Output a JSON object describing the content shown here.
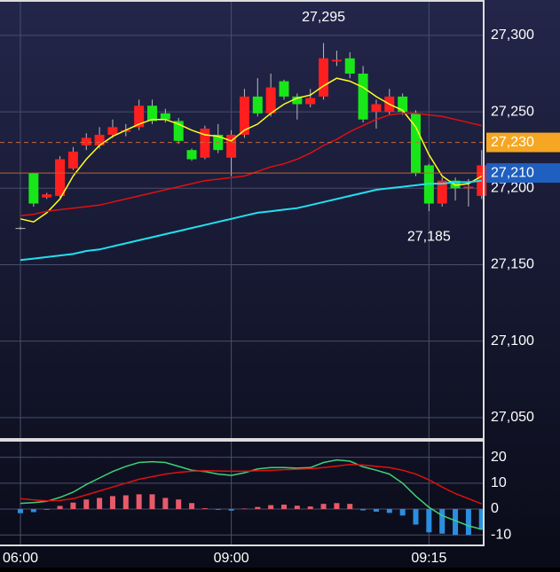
{
  "chart_data": [
    {
      "type": "candlestick",
      "categories": [
        "06:00",
        null,
        null,
        null,
        null,
        null,
        null,
        null,
        null,
        null,
        null,
        null,
        null,
        null,
        null,
        null,
        "09:00",
        null,
        null,
        null,
        null,
        null,
        null,
        null,
        null,
        null,
        null,
        null,
        null,
        null,
        null,
        "09:15",
        null,
        null,
        null,
        null
      ],
      "open": [
        27174,
        27210,
        27194,
        27195,
        27213,
        27228,
        27228,
        27235,
        27237,
        27240,
        27254,
        27249,
        27244,
        27225,
        27220,
        27235,
        27220,
        27235,
        27260,
        27249,
        27270,
        27260,
        27255,
        27260,
        27283,
        27285,
        27275,
        27250,
        27250,
        27260,
        27249,
        27215,
        27190,
        27205,
        27200,
        27195
      ],
      "high": [
        27175,
        27210,
        27197,
        27221,
        27227,
        27236,
        27240,
        27245,
        27242,
        27258,
        27258,
        27252,
        27246,
        27226,
        27241,
        27242,
        27238,
        27265,
        27272,
        27275,
        27271,
        27262,
        27265,
        27295,
        27290,
        27289,
        27280,
        27258,
        27265,
        27262,
        27251,
        27216,
        27207,
        27207,
        27206,
        27225
      ],
      "low": [
        27173,
        27188,
        27193,
        27194,
        27212,
        27225,
        27226,
        27233,
        27234,
        27238,
        27242,
        27243,
        27229,
        27218,
        27219,
        27223,
        27208,
        27233,
        27247,
        27247,
        27258,
        27245,
        27253,
        27258,
        27280,
        27272,
        27243,
        27239,
        27248,
        27248,
        27208,
        27185,
        27188,
        27192,
        27188,
        27193
      ],
      "close": [
        27174,
        27190,
        27196,
        27219,
        27224,
        27233,
        27235,
        27240,
        27238,
        27254,
        27244,
        27245,
        27231,
        27219,
        27239,
        27225,
        27235,
        27260,
        27249,
        27266,
        27260,
        27255,
        27259,
        27285,
        27284,
        27275,
        27245,
        27255,
        27260,
        27250,
        27210,
        27190,
        27205,
        27200,
        27201,
        27215
      ],
      "up_color": "#ff1f1f",
      "down_color": "#19e619",
      "lines": [
        {
          "color": "#ffff22",
          "values": [
            27180,
            27178,
            27184,
            27193,
            27208,
            27219,
            27228,
            27234,
            27238,
            27242,
            27245,
            27245,
            27242,
            27238,
            27235,
            27234,
            27231,
            27238,
            27242,
            27249,
            27255,
            27259,
            27261,
            27267,
            27272,
            27270,
            27266,
            27260,
            27255,
            27251,
            27240,
            27222,
            27208,
            27202,
            27203,
            27208
          ]
        },
        {
          "color": "#e01010",
          "values": [
            27182,
            27183,
            27185,
            27186,
            27187,
            27188,
            27189,
            27191,
            27193,
            27195,
            27197,
            27199,
            27201,
            27203,
            27205,
            27206,
            27207,
            27208,
            27211,
            27214,
            27216,
            27219,
            27223,
            27228,
            27232,
            27237,
            27241,
            27245,
            27248,
            27249,
            27249,
            27248,
            27247,
            27245,
            27243,
            27241
          ]
        },
        {
          "color": "#22e0f0",
          "values": [
            27153,
            27154,
            27155,
            27156,
            27157,
            27159,
            27160,
            27162,
            27164,
            27166,
            27168,
            27170,
            27172,
            27174,
            27176,
            27178,
            27180,
            27182,
            27184,
            27185,
            27186,
            27187,
            27189,
            27191,
            27193,
            27195,
            27197,
            27199,
            27200,
            27201,
            27202,
            27203,
            27203,
            27204,
            27204,
            27205
          ]
        }
      ],
      "ylim": [
        27036,
        27322
      ],
      "yticks": [
        {
          "value": 27050,
          "label": "27,050"
        },
        {
          "value": 27100,
          "label": "27,100"
        },
        {
          "value": 27150,
          "label": "27,150"
        },
        {
          "value": 27200,
          "label": "27,200"
        },
        {
          "value": 27250,
          "label": "27,250"
        },
        {
          "value": 27300,
          "label": "27,300"
        }
      ],
      "grid": true,
      "annotations": [
        {
          "label": "27,295",
          "value": 27295,
          "at": "high"
        },
        {
          "label": "27,185",
          "value": 27185,
          "at": "low"
        }
      ],
      "price_lines": [
        {
          "label": "27,230",
          "value": 27230,
          "color": "#f5a623"
        },
        {
          "label": "27,210",
          "value": 27210,
          "color": "#1f5fbf"
        }
      ]
    },
    {
      "type": "macd",
      "histogram": [
        -1.6,
        -1.2,
        -0.3,
        1.2,
        2.5,
        3.7,
        4.3,
        5,
        5.3,
        5.7,
        5.7,
        4.3,
        3.7,
        2.3,
        0.3,
        -0.3,
        -0.6,
        0.2,
        0.8,
        1.5,
        1.7,
        1.3,
        1,
        2,
        2.3,
        2,
        -0.5,
        -1,
        -1.5,
        -2.5,
        -6,
        -9,
        -9.5,
        -10,
        -10,
        -8
      ],
      "up_color": "#e85a6a",
      "down_color": "#2a8fe0",
      "lines": [
        {
          "color": "#3fd07a",
          "values": [
            2.2,
            2.5,
            3,
            4.5,
            6.5,
            9.5,
            12,
            14.5,
            16.5,
            18,
            18.3,
            18,
            16.5,
            15,
            14.5,
            13.5,
            13,
            14,
            15.5,
            16,
            16,
            15.8,
            16,
            18,
            19,
            18.5,
            16.3,
            15,
            13.5,
            10,
            5,
            0.7,
            -2.5,
            -4.5,
            -6.5,
            -7.8
          ]
        },
        {
          "color": "#e01010",
          "values": [
            4,
            3.5,
            3.2,
            3.3,
            4,
            5.5,
            7,
            8.5,
            10,
            11.5,
            12.5,
            13.5,
            14.2,
            14.6,
            14.8,
            14.7,
            14.6,
            14.6,
            14.8,
            15,
            15.2,
            15.4,
            15.6,
            16,
            16.6,
            17.2,
            17,
            16.5,
            16,
            15,
            13.5,
            11.3,
            8.5,
            6,
            4,
            2
          ]
        }
      ],
      "ylim": [
        -13.7,
        25.7
      ],
      "yticks": [
        -10,
        0,
        10,
        20
      ],
      "grid": true
    }
  ]
}
